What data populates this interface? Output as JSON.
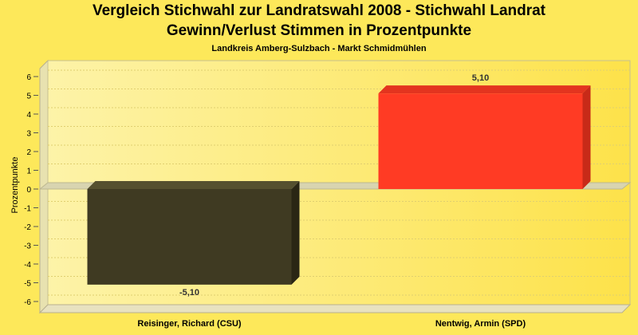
{
  "chart_data": {
    "type": "bar",
    "title": "Vergleich Stichwahl zur Landratswahl 2008 - Stichwahl Landrat",
    "title_line2": "Gewinn/Verlust Stimmen in Prozentpunkte",
    "subtitle": "Landkreis Amberg-Sulzbach - Markt Schmidmühlen",
    "ylabel": "Prozentpunkte",
    "xlabel": "",
    "categories": [
      "Reisinger, Richard (CSU)",
      "Nentwig, Armin (SPD)"
    ],
    "values": [
      -5.1,
      5.1
    ],
    "value_labels": [
      "-5,10",
      "5,10"
    ],
    "colors": [
      "#3f3a22",
      "#ff3b24"
    ],
    "ylim": [
      -6,
      6
    ],
    "yticks": [
      6,
      5,
      4,
      3,
      2,
      1,
      0,
      -1,
      -2,
      -3,
      -4,
      -5,
      -6
    ],
    "grid": true,
    "legend": "none"
  }
}
